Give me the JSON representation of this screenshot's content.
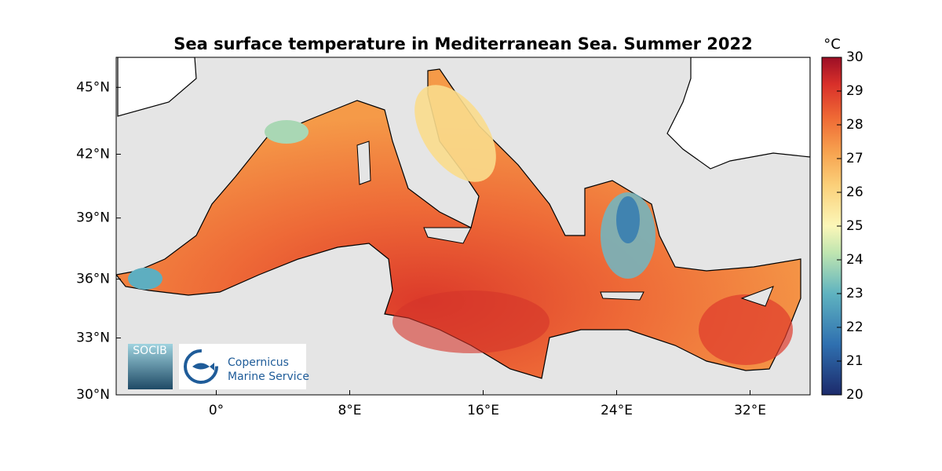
{
  "map": {
    "title": "Sea surface temperature in Mediterranean Sea. Summer 2022",
    "xlim": [
      -6,
      35.6
    ],
    "ylim": [
      30,
      46.3
    ],
    "xticks": [
      {
        "value": 0,
        "label": "0°"
      },
      {
        "value": 8,
        "label": "8°E"
      },
      {
        "value": 16,
        "label": "16°E"
      },
      {
        "value": 24,
        "label": "24°E"
      },
      {
        "value": 32,
        "label": "32°E"
      }
    ],
    "yticks": [
      {
        "value": 30,
        "label": "30°N"
      },
      {
        "value": 33,
        "label": "33°N"
      },
      {
        "value": 36,
        "label": "36°N"
      },
      {
        "value": 39,
        "label": "39°N"
      },
      {
        "value": 42,
        "label": "42°N"
      },
      {
        "value": 45,
        "label": "45°N"
      }
    ],
    "colorbar": {
      "unit": "°C",
      "lim": [
        20,
        30
      ],
      "ticks": [
        20,
        21,
        22,
        23,
        24,
        25,
        26,
        27,
        28,
        29,
        30
      ]
    },
    "logos": {
      "socib": "SOCIB",
      "copernicus_line1": "Copernicus",
      "copernicus_line2": "Marine Service"
    }
  }
}
